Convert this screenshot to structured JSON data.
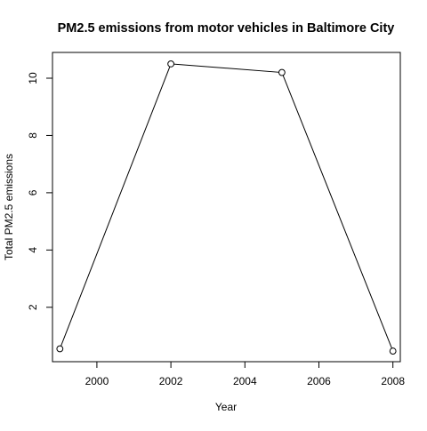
{
  "chart_data": {
    "type": "line",
    "title": "PM2.5 emissions from motor vehicles in Baltimore City",
    "xlabel": "Year",
    "ylabel": "Total PM2.5 emissions",
    "x": [
      1999,
      2002,
      2005,
      2008
    ],
    "series": [
      {
        "values": [
          0.55,
          10.5,
          10.2,
          0.47
        ]
      }
    ],
    "xlim": [
      1998.8,
      2008.2
    ],
    "ylim": [
      0.1,
      10.9
    ],
    "xticks": [
      2000,
      2002,
      2004,
      2006,
      2008
    ],
    "yticks": [
      2,
      4,
      6,
      8,
      10
    ],
    "xtick_labels": [
      "2000",
      "2002",
      "2004",
      "2006",
      "2008"
    ],
    "ytick_labels": [
      "2",
      "4",
      "6",
      "8",
      "10"
    ],
    "marker": "open-circle",
    "line_color": "#000000",
    "grid": false,
    "legend": "none"
  }
}
